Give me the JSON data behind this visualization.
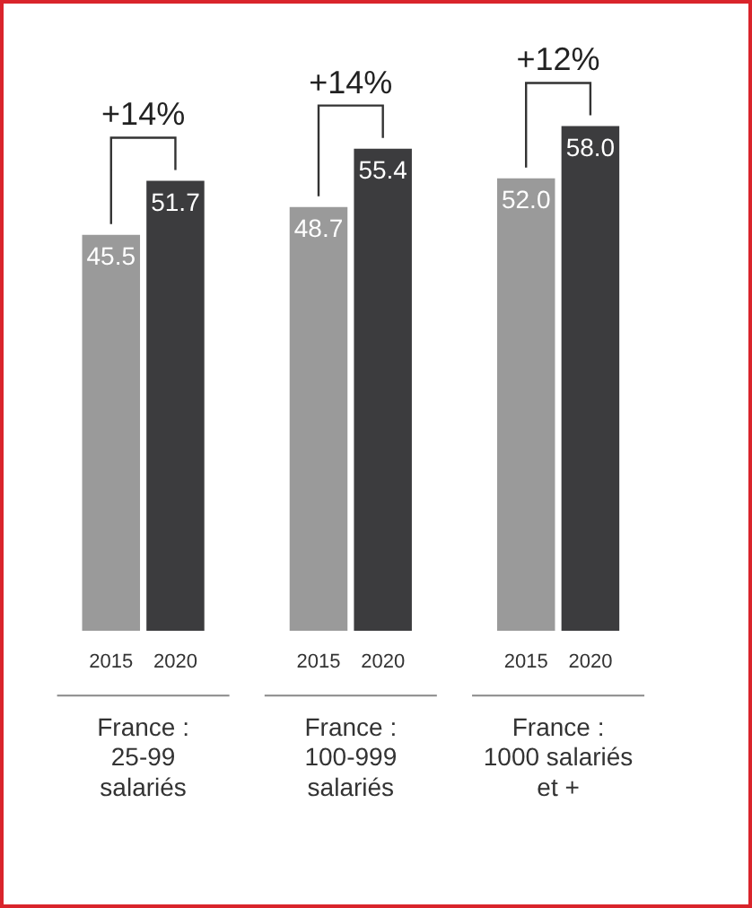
{
  "chart_data": {
    "type": "bar",
    "categories": [
      "France :\n25-99\nsalariés",
      "France :\n100-999\nsalariés",
      "France :\n1000 salariés\net +"
    ],
    "series": [
      {
        "name": "2015",
        "color": "#9a9a9a",
        "values": [
          45.5,
          48.7,
          52.0
        ],
        "value_labels": [
          "45.5",
          "48.7",
          "52.0"
        ]
      },
      {
        "name": "2020",
        "color": "#3c3c3e",
        "values": [
          51.7,
          55.4,
          58.0
        ],
        "value_labels": [
          "51.7",
          "55.4",
          "58.0"
        ]
      }
    ],
    "annotations": [
      "+14%",
      "+14%",
      "+12%"
    ],
    "legend": false,
    "grid": false
  }
}
